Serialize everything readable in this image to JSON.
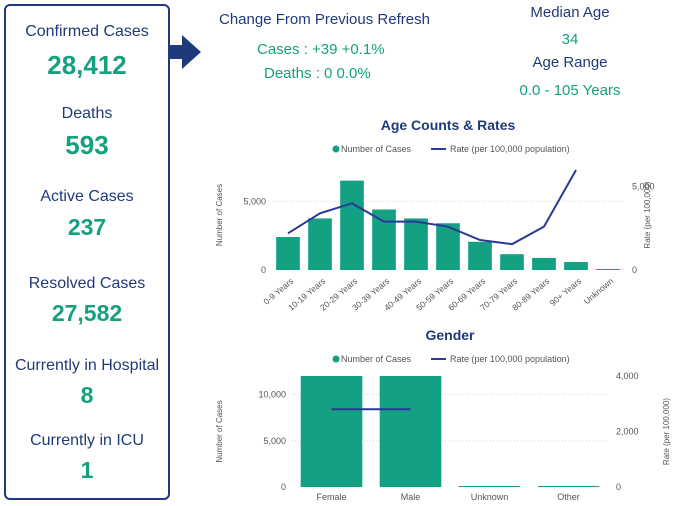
{
  "summary": {
    "confirmed": {
      "label": "Confirmed Cases",
      "value": "28,412"
    },
    "deaths": {
      "label": "Deaths",
      "value": "593"
    },
    "active": {
      "label": "Active Cases",
      "value": "237"
    },
    "resolved": {
      "label": "Resolved Cases",
      "value": "27,582"
    },
    "hospital": {
      "label": "Currently in Hospital",
      "value": "8"
    },
    "icu": {
      "label": "Currently in ICU",
      "value": "1"
    }
  },
  "change": {
    "title": "Change From Previous Refresh",
    "cases": "Cases : +39 +0.1%",
    "deaths": "Deaths : 0 0.0%"
  },
  "age_info": {
    "median_label": "Median Age",
    "median_value": "34",
    "range_label": "Age Range",
    "range_value": "0.0 - 105 Years"
  },
  "colors": {
    "bar": "#13a083",
    "line": "#2b3896",
    "navy": "#1f3a7a",
    "accent": "#15a07f"
  },
  "chart_data": [
    {
      "type": "bar",
      "title": "Age Counts & Rates",
      "legend": {
        "placement": "top",
        "bar_label": "Number of Cases",
        "line_label": "Rate (per 100,000 population)"
      },
      "categories": [
        "0-9 Years",
        "10-19 Years",
        "20-29 Years",
        "30-39 Years",
        "40-49 Years",
        "50-59 Years",
        "60-69 Years",
        "70-79 Years",
        "80-89 Years",
        "90+ Years",
        "Unknown"
      ],
      "series": [
        {
          "name": "Number of Cases",
          "kind": "bar",
          "axis": "left",
          "values": [
            2400,
            3750,
            6500,
            4400,
            3750,
            3400,
            2050,
            1150,
            880,
            580,
            20
          ]
        },
        {
          "name": "Rate (per 100,000 population)",
          "kind": "line",
          "axis": "right",
          "values": [
            2200,
            3400,
            4000,
            2900,
            2900,
            2600,
            1800,
            1550,
            2600,
            6000,
            null
          ]
        }
      ],
      "ylabel": "Number of Cases",
      "y2label": "Rate (per 100,000)",
      "ylim": [
        0,
        8000
      ],
      "y2lim": [
        0,
        6600
      ],
      "yticks": [
        0,
        5000
      ],
      "ytick_labels": [
        "0",
        "5,000"
      ],
      "y2ticks": [
        0,
        5000
      ],
      "y2tick_labels": [
        "0",
        "5,000"
      ],
      "grid": true
    },
    {
      "type": "bar",
      "title": "Gender",
      "legend": {
        "placement": "top",
        "bar_label": "Number of Cases",
        "line_label": "Rate (per 100,000 population)"
      },
      "categories": [
        "Female",
        "Male",
        "Unknown",
        "Other"
      ],
      "series": [
        {
          "name": "Number of Cases",
          "kind": "bar",
          "axis": "left",
          "values": [
            12000,
            12000,
            80,
            30
          ]
        },
        {
          "name": "Rate (per 100,000 population)",
          "kind": "line",
          "axis": "right",
          "values": [
            2800,
            2800,
            null,
            null
          ]
        }
      ],
      "ylabel": "Number of Cases",
      "y2label": "Rate (per 100,000)",
      "ylim": [
        0,
        12000
      ],
      "y2lim": [
        0,
        4000
      ],
      "yticks": [
        0,
        5000,
        10000
      ],
      "ytick_labels": [
        "0",
        "5,000",
        "10,000"
      ],
      "y2ticks": [
        0,
        2000,
        4000
      ],
      "y2tick_labels": [
        "0",
        "2,000",
        "4,000"
      ],
      "grid": true
    }
  ]
}
